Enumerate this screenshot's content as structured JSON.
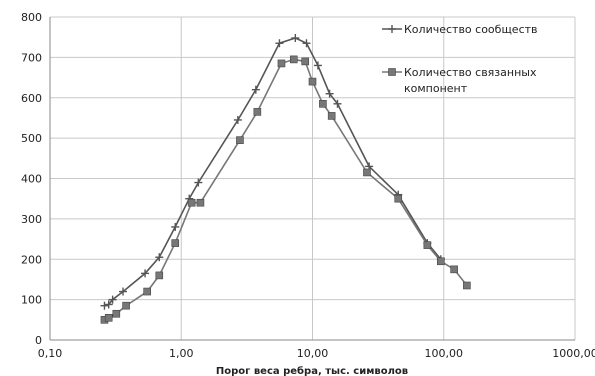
{
  "chart_data": {
    "type": "line",
    "title": "",
    "xlabel": "Порог веса ребра, тыс. символов",
    "ylabel": "",
    "xscale": "log",
    "xlim": [
      0.1,
      1000
    ],
    "ylim": [
      0,
      800
    ],
    "grid": true,
    "legend_position": "top-right",
    "x_tick_labels": [
      "0,10",
      "1,00",
      "10,00",
      "100,00",
      "1000,00"
    ],
    "y_tick_labels": [
      "0",
      "100",
      "200",
      "300",
      "400",
      "500",
      "600",
      "700",
      "800"
    ],
    "series": [
      {
        "name": "Количество сообществ",
        "marker": "plus",
        "color": "#555555",
        "x": [
          0.26,
          0.28,
          0.3,
          0.36,
          0.53,
          0.68,
          0.9,
          1.15,
          1.35,
          2.7,
          3.7,
          5.6,
          7.4,
          9.0,
          11.0,
          13.5,
          15.5,
          27.0,
          45.0,
          75.0,
          95.0
        ],
        "y": [
          85,
          88,
          100,
          120,
          165,
          205,
          280,
          350,
          390,
          545,
          620,
          735,
          748,
          735,
          680,
          610,
          585,
          430,
          360,
          240,
          200
        ]
      },
      {
        "name": "Количество связанных компонент",
        "marker": "square",
        "color": "#777777",
        "x": [
          0.26,
          0.28,
          0.32,
          0.38,
          0.55,
          0.68,
          0.9,
          1.2,
          1.4,
          2.8,
          3.8,
          5.8,
          7.2,
          8.8,
          10.0,
          12.0,
          14.0,
          26.0,
          45.0,
          75.0,
          95.0,
          120.0,
          150.0
        ],
        "y": [
          50,
          55,
          65,
          85,
          120,
          160,
          240,
          340,
          340,
          495,
          565,
          685,
          695,
          690,
          640,
          585,
          555,
          415,
          350,
          235,
          195,
          175,
          135
        ]
      }
    ]
  }
}
